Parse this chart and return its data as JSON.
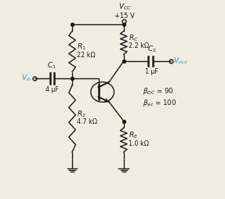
{
  "background_color": "#f0ece0",
  "line_color": "#1a1a1a",
  "text_color": "#2196f3",
  "vcc_label": "$V_{CC}$",
  "vcc_value": "+15 V",
  "r1_label": "$R_1$",
  "r1_value": "22 kΩ",
  "r2_label": "$R_2$",
  "r2_value": "4.7 kΩ",
  "rc_label": "$R_C$",
  "rc_value": "2.2 kΩ",
  "re_label": "$R_E$",
  "re_value": "1.0 kΩ",
  "c1_label": "$C_1$",
  "c1_value": "4 μF",
  "c2_label": "$C_2$",
  "c2_value": "1 μF",
  "vin_label": "$V_{in}$",
  "vout_label": "$V_{out}$",
  "beta_dc": "$\\beta_{DC}$ = 90",
  "beta_ac": "$\\beta_{ac}$ = 100",
  "xlim": [
    0,
    10
  ],
  "ylim": [
    0,
    10
  ]
}
